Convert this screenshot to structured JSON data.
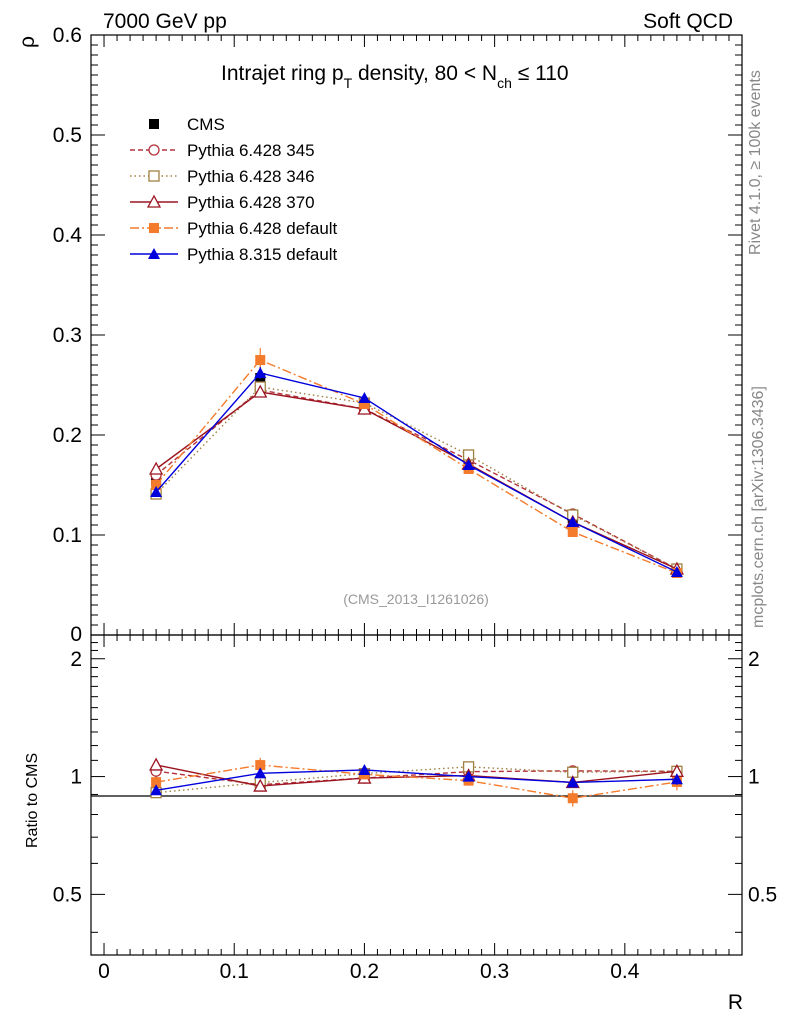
{
  "header": {
    "left": "7000 GeV pp",
    "right": "Soft QCD"
  },
  "side_text": {
    "top": "Rivet 4.1.0, ≥ 100k events",
    "bottom": "mcplots.cern.ch [arXiv:1306.3436]"
  },
  "chart_data": {
    "type": "line",
    "title": {
      "main": "Intrajet ring p",
      "sub_T": "T",
      "mid": " density, 80 < N",
      "sub_ch": "ch",
      "end": " ≤ 110"
    },
    "watermark": "(CMS_2013_I1261026)",
    "xlabel": "R",
    "ylabel": "ρ",
    "ratio_ylabel": "Ratio to CMS",
    "xlim": [
      -0.01,
      0.49
    ],
    "ylim": [
      0,
      0.6
    ],
    "ratio_ylim": [
      0.35,
      2.3
    ],
    "x_ticks": [
      0,
      0.1,
      0.2,
      0.3,
      0.4
    ],
    "x_tick_labels": [
      "0",
      "0.1",
      "0.2",
      "0.3",
      "0.4"
    ],
    "y_ticks": [
      0,
      0.1,
      0.2,
      0.3,
      0.4,
      0.5,
      0.6
    ],
    "y_tick_labels": [
      "0",
      "0.1",
      "0.2",
      "0.3",
      "0.4",
      "0.5",
      "0.6"
    ],
    "ratio_ticks": [
      0.5,
      1,
      2
    ],
    "ratio_tick_labels": [
      "0.5",
      "1",
      "2"
    ],
    "x": [
      0.04,
      0.12,
      0.2,
      0.28,
      0.36,
      0.44
    ],
    "series": [
      {
        "name": "CMS",
        "color": "#000000",
        "marker": "square-filled",
        "values": [
          0.155,
          0.257,
          0.228,
          0.17,
          0.117,
          0.064
        ],
        "errors": [
          0.005,
          0.006,
          0.005,
          0.004,
          0.003,
          0.002
        ]
      },
      {
        "name": "Pythia 6.428 345",
        "color": "#b4323a",
        "marker": "circle-open",
        "dash": "5,3",
        "values": [
          0.16,
          0.245,
          0.226,
          0.175,
          0.121,
          0.066
        ],
        "errors": [
          0,
          0,
          0,
          0,
          0,
          0
        ]
      },
      {
        "name": "Pythia 6.428 346",
        "color": "#a08040",
        "marker": "square-open",
        "dash": "1.5,3",
        "values": [
          0.141,
          0.248,
          0.232,
          0.18,
          0.12,
          0.066
        ],
        "errors": [
          0,
          0,
          0,
          0,
          0,
          0
        ]
      },
      {
        "name": "Pythia 6.428 370",
        "color": "#9b1420",
        "marker": "triangle-open",
        "dash": "",
        "values": [
          0.166,
          0.243,
          0.226,
          0.171,
          0.113,
          0.066
        ],
        "errors": [
          0,
          0,
          0,
          0,
          0,
          0
        ]
      },
      {
        "name": "Pythia 6.428 default",
        "color": "#f47b2b",
        "marker": "square-filled",
        "dash": "9,3,2,3",
        "values": [
          0.15,
          0.275,
          0.231,
          0.166,
          0.103,
          0.062
        ],
        "errors": [
          0.004,
          0.012,
          0.005,
          0.005,
          0.005,
          0.003
        ]
      },
      {
        "name": "Pythia 8.315 default",
        "color": "#0000dd",
        "marker": "triangle-filled",
        "dash": "",
        "values": [
          0.143,
          0.262,
          0.237,
          0.17,
          0.113,
          0.063
        ],
        "errors": [
          0.003,
          0.006,
          0.004,
          0.003,
          0.003,
          0.002
        ]
      }
    ]
  }
}
